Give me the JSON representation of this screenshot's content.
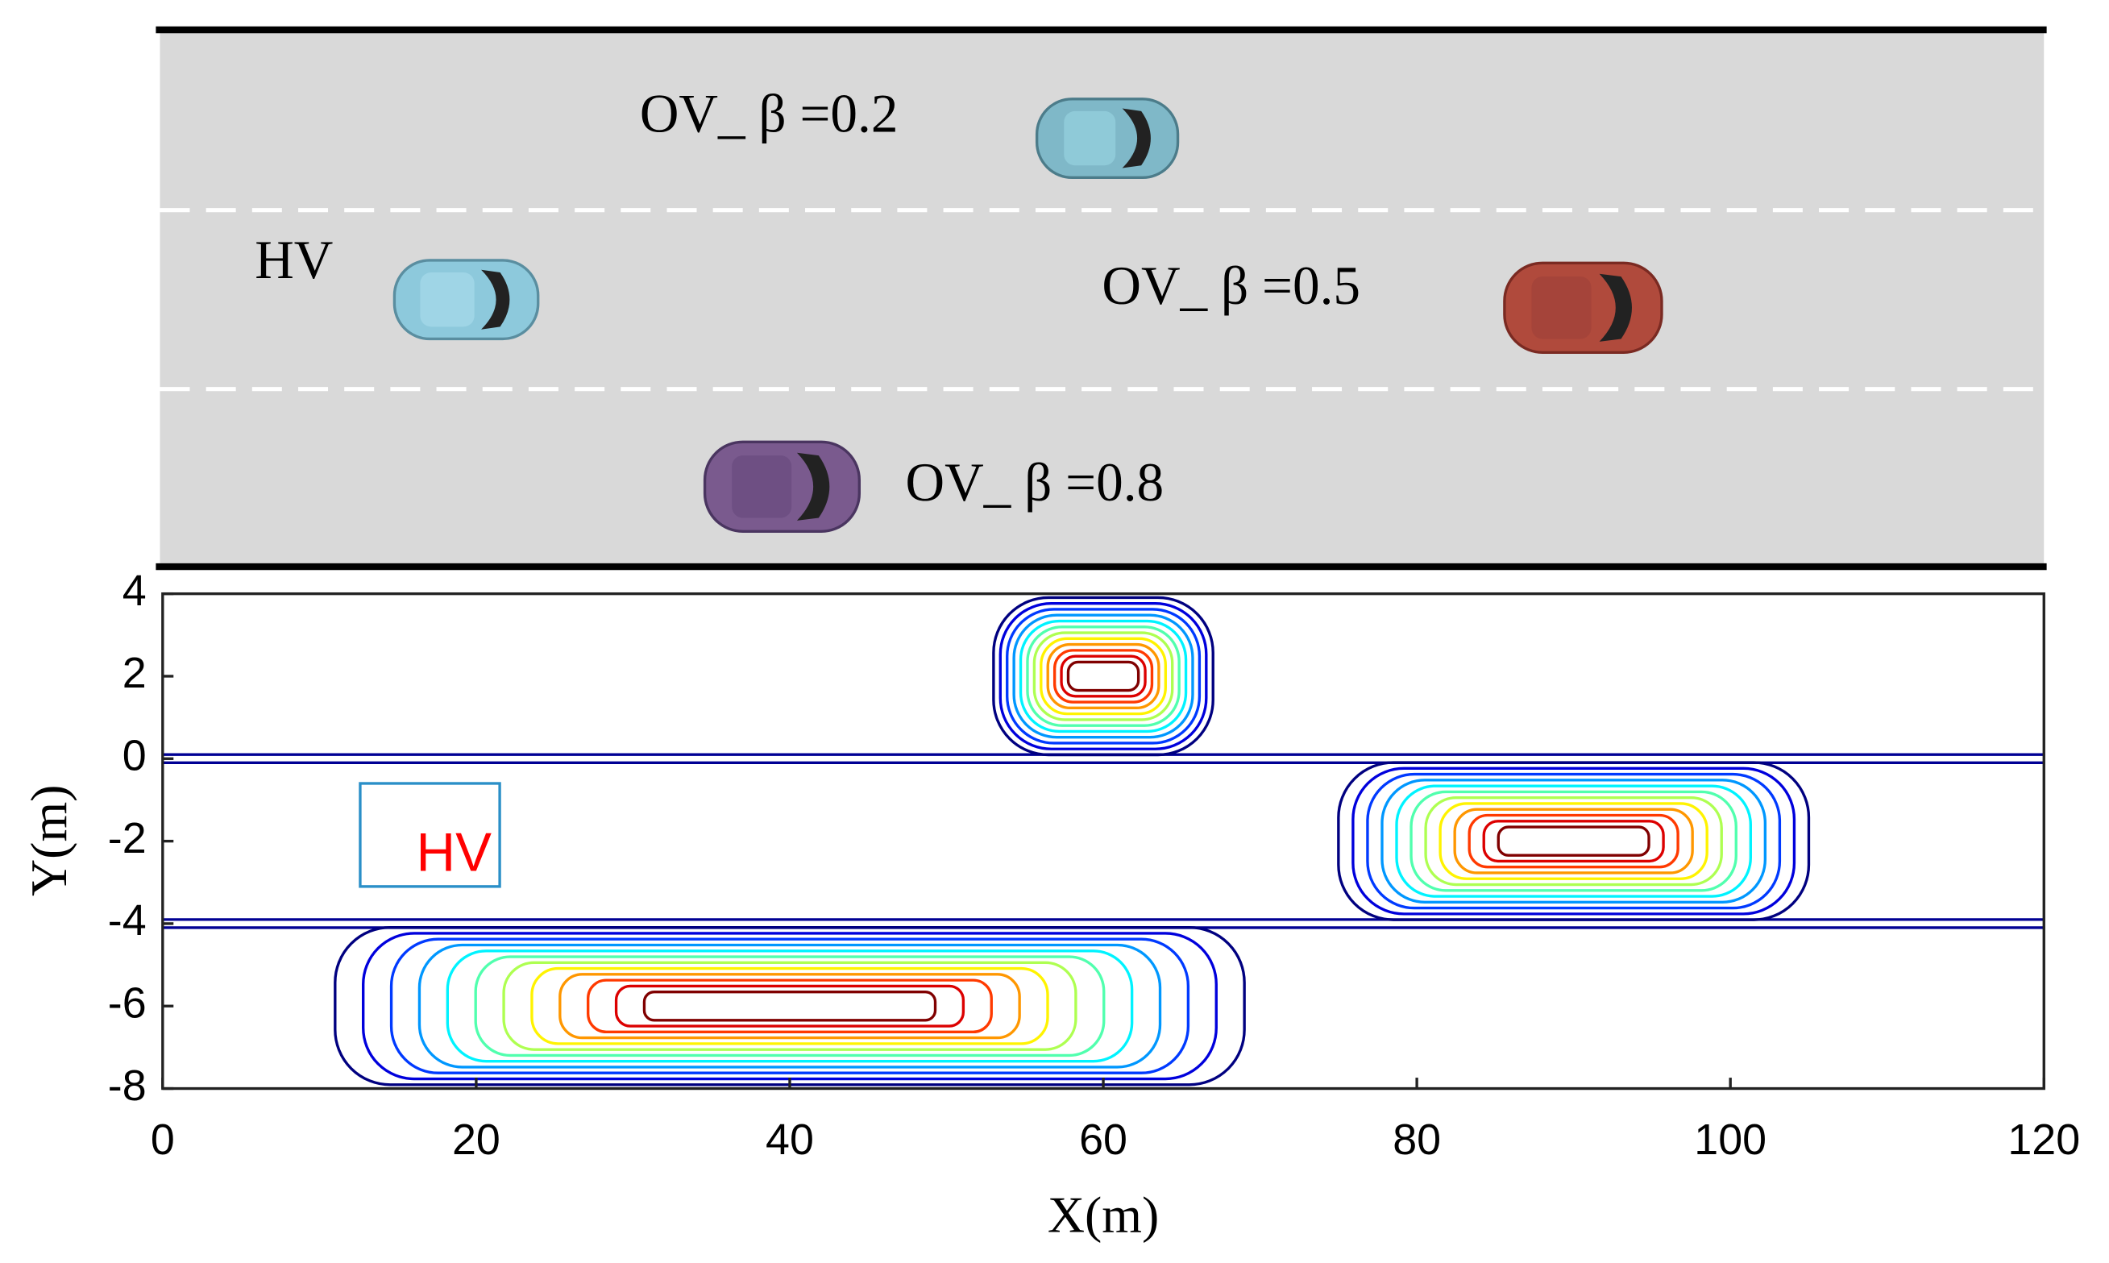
{
  "scene": {
    "labels": [
      {
        "text": "OV_ β =0.2"
      },
      {
        "text": "HV"
      },
      {
        "text": "OV_ β =0.5"
      },
      {
        "text": "OV_ β =0.8"
      }
    ]
  },
  "chart_data": {
    "type": "contour",
    "xlabel": "X(m)",
    "ylabel": "Y(m)",
    "xlim": [
      0,
      120
    ],
    "ylim": [
      -8,
      4
    ],
    "xticks": [
      0,
      20,
      40,
      60,
      80,
      100,
      120
    ],
    "yticks": [
      -8,
      -6,
      -4,
      -2,
      0,
      2,
      4
    ],
    "colormap": "jet",
    "sources": [
      {
        "x": 60,
        "y": 2,
        "half_length": 7
      },
      {
        "x": 90,
        "y": -2,
        "half_length": 15
      },
      {
        "x": 40,
        "y": -6,
        "half_length": 29
      }
    ],
    "road_edges": [
      4,
      -8
    ],
    "lane_lines": [
      0,
      -4
    ],
    "annotation": {
      "text": "HV",
      "x": [
        12.6,
        21.5
      ],
      "y": [
        -3.1,
        -0.6
      ]
    }
  }
}
